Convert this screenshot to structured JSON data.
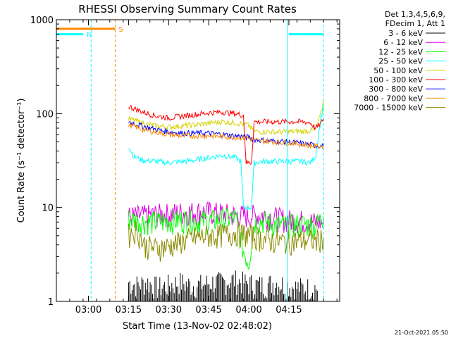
{
  "chart_data": {
    "type": "line",
    "title": "RHESSI Observing Summary Count Rates",
    "xlabel": "Start Time (13-Nov-02 02:48:02)",
    "ylabel": "Count Rate (s⁻¹ detector⁻¹)",
    "yscale": "log",
    "ylim": [
      1,
      1000
    ],
    "xlim_minutes": [
      0,
      106
    ],
    "x_ticks": [
      {
        "label": "03:00",
        "t": 12
      },
      {
        "label": "03:15",
        "t": 27
      },
      {
        "label": "03:30",
        "t": 42
      },
      {
        "label": "03:45",
        "t": 57
      },
      {
        "label": "04:00",
        "t": 72
      },
      {
        "label": "04:15",
        "t": 87
      }
    ],
    "y_ticks": [
      {
        "label": "1",
        "v": 1
      },
      {
        "label": "10",
        "v": 10
      },
      {
        "label": "100",
        "v": 100
      },
      {
        "label": "1000",
        "v": 1000
      }
    ],
    "legend_header": [
      "Det 1,3,4,5,6,9,",
      "FDecim 1, Att 1"
    ],
    "series": [
      {
        "name": "3 - 6 keV",
        "color": "#000000",
        "x": [
          27,
          30,
          34,
          38,
          42,
          46,
          50,
          54,
          58,
          62,
          66,
          70,
          74,
          78,
          82,
          86,
          90,
          94,
          98
        ],
        "y": [
          1.6,
          1.5,
          1.6,
          1.4,
          1.5,
          1.6,
          1.5,
          1.5,
          1.6,
          1.6,
          1.7,
          1.6,
          1.5,
          1.5,
          1.6,
          1.5,
          1.4,
          1.4,
          1.4
        ]
      },
      {
        "name": "6 - 12 keV",
        "color": "#e000e0",
        "x": [
          27,
          32,
          37,
          42,
          47,
          52,
          57,
          62,
          67,
          72,
          77,
          82,
          87,
          92,
          97,
          100
        ],
        "y": [
          8.0,
          8.2,
          8.4,
          8.6,
          8.9,
          9.1,
          9.0,
          8.7,
          8.3,
          8.2,
          8.4,
          7.8,
          7.4,
          7.2,
          7.0,
          7.0
        ]
      },
      {
        "name": "12 - 25 keV",
        "color": "#00ff00",
        "x": [
          27,
          32,
          37,
          42,
          47,
          52,
          57,
          62,
          67,
          70,
          72,
          74,
          77,
          82,
          87,
          92,
          97,
          100
        ],
        "y": [
          7.6,
          7.2,
          7.0,
          7.2,
          7.4,
          7.3,
          7.2,
          7.6,
          7.8,
          3.5,
          2.6,
          7.0,
          7.2,
          6.6,
          6.5,
          6.7,
          6.5,
          8.0
        ]
      },
      {
        "name": "25 - 50 keV",
        "color": "#00ffff",
        "x": [
          27,
          29,
          32,
          37,
          42,
          47,
          52,
          57,
          62,
          67,
          69,
          70,
          71,
          72,
          73,
          74,
          77,
          82,
          87,
          92,
          95,
          97,
          99,
          100
        ],
        "y": [
          45,
          35,
          32,
          31,
          30,
          31,
          32,
          34,
          36,
          34,
          31,
          10,
          10,
          10,
          10,
          30,
          31,
          31,
          31,
          31,
          30,
          35,
          90,
          120
        ]
      },
      {
        "name": "50 - 100 keV",
        "color": "#d4d400",
        "x": [
          27,
          32,
          37,
          42,
          47,
          52,
          57,
          62,
          67,
          72,
          74,
          77,
          82,
          87,
          92,
          95,
          97,
          99,
          100
        ],
        "y": [
          88,
          80,
          74,
          72,
          74,
          76,
          79,
          82,
          80,
          75,
          65,
          64,
          64,
          64,
          65,
          66,
          68,
          100,
          140
        ]
      },
      {
        "name": "100 - 300 keV",
        "color": "#ff0000",
        "x": [
          27,
          32,
          37,
          42,
          47,
          52,
          57,
          62,
          67,
          70,
          71,
          72,
          73,
          74,
          77,
          82,
          87,
          92,
          95,
          97,
          99,
          100
        ],
        "y": [
          120,
          105,
          95,
          90,
          94,
          98,
          102,
          104,
          100,
          96,
          30,
          30,
          30,
          82,
          82,
          82,
          82,
          82,
          80,
          70,
          78,
          90
        ]
      },
      {
        "name": "300 - 800 keV",
        "color": "#0000ff",
        "x": [
          27,
          32,
          37,
          42,
          47,
          52,
          57,
          62,
          67,
          72,
          74,
          77,
          82,
          87,
          92,
          97,
          100
        ],
        "y": [
          82,
          74,
          68,
          64,
          62,
          62,
          62,
          60,
          58,
          56,
          53,
          52,
          51,
          50,
          48,
          46,
          45
        ]
      },
      {
        "name": "800 - 7000 keV",
        "color": "#ff8800",
        "x": [
          27,
          32,
          37,
          42,
          47,
          52,
          57,
          62,
          67,
          72,
          74,
          77,
          82,
          87,
          92,
          97,
          100
        ],
        "y": [
          76,
          68,
          64,
          60,
          58,
          58,
          58,
          57,
          56,
          55,
          52,
          51,
          50,
          49,
          47,
          45,
          45
        ]
      },
      {
        "name": "7000 - 15000 keV",
        "color": "#8b8b00",
        "x": [
          27,
          30,
          33,
          37,
          42,
          47,
          52,
          57,
          62,
          67,
          72,
          77,
          82,
          87,
          92,
          97,
          100
        ],
        "y": [
          5.2,
          5.8,
          4.0,
          3.7,
          3.9,
          4.4,
          4.8,
          5.0,
          5.2,
          5.4,
          5.1,
          4.7,
          4.4,
          4.4,
          4.5,
          4.5,
          4.8
        ]
      }
    ],
    "bars": [
      {
        "label": "N",
        "color": "#00ffff",
        "segments": [
          [
            0,
            10
          ],
          [
            87,
            100
          ]
        ],
        "level": 700
      },
      {
        "label": "S",
        "color": "#ff8800",
        "segments": [
          [
            0,
            22
          ]
        ],
        "level": 800
      }
    ],
    "vertical_markers": [
      {
        "t": 0,
        "color": "#00ffff",
        "style": "dashed"
      },
      {
        "t": 13,
        "color": "#00ffff",
        "style": "dashed"
      },
      {
        "t": 22,
        "color": "#ff8800",
        "style": "dashed"
      },
      {
        "t": 86.5,
        "color": "#00ffff",
        "style": "solid"
      },
      {
        "t": 100,
        "color": "#00ffff",
        "style": "dashed"
      }
    ]
  },
  "timestamp": "21-Oct-2021 05:50"
}
